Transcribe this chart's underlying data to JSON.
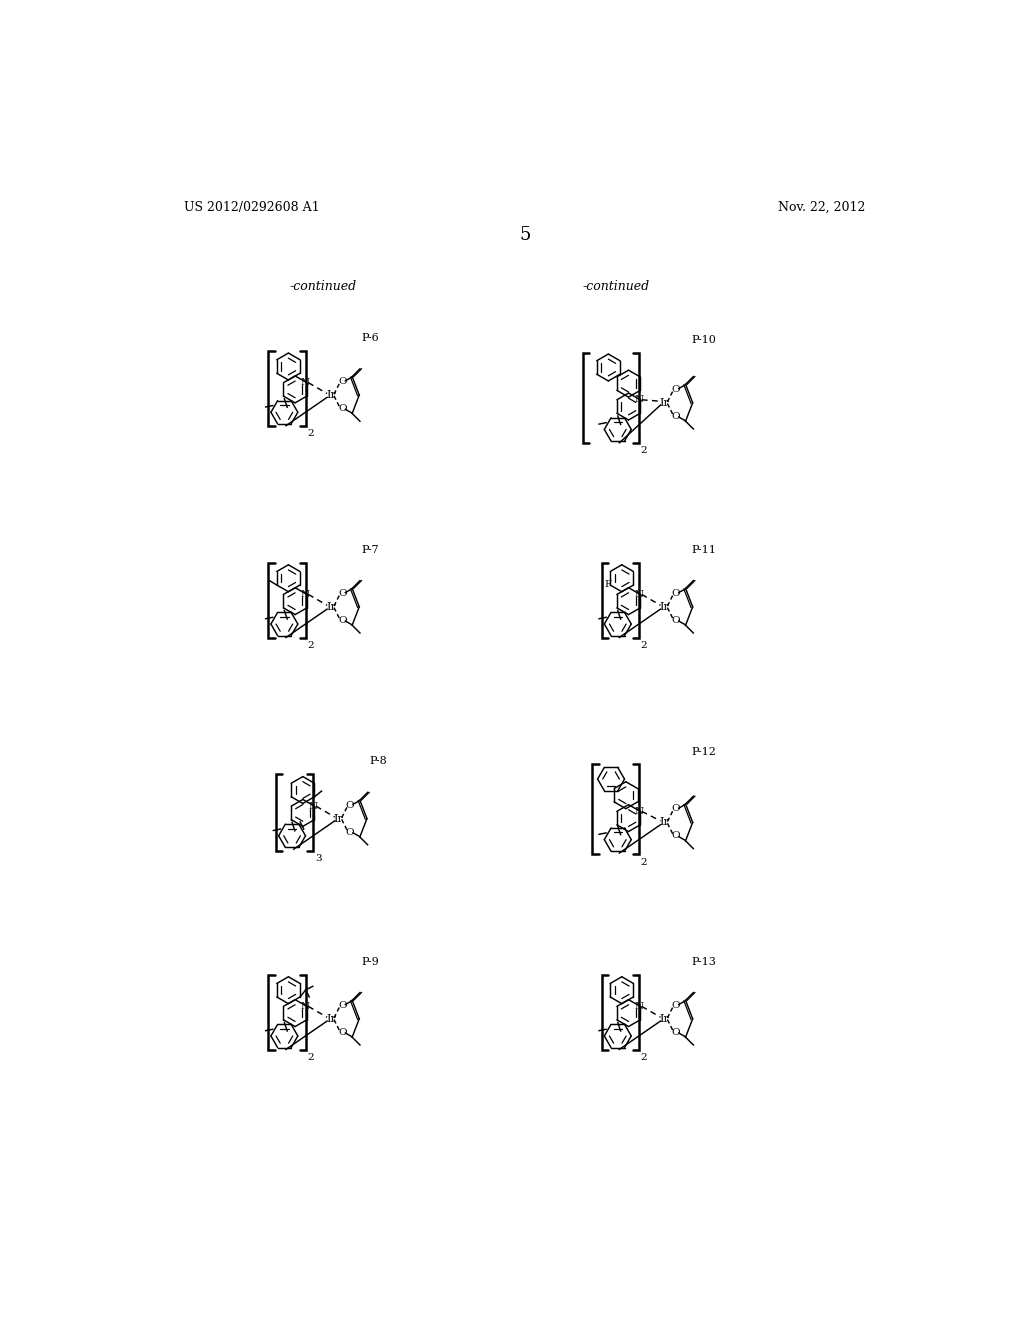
{
  "background_color": "#ffffff",
  "header_left": "US 2012/0292608 A1",
  "header_right": "Nov. 22, 2012",
  "page_number": "5",
  "continued_left": "-continued",
  "continued_right": "-continued",
  "labels_left": [
    "P-6",
    "P-7",
    "P-8",
    "P-9"
  ],
  "labels_right": [
    "P-10",
    "P-11",
    "P-12",
    "P-13"
  ],
  "subscripts_left": [
    "2",
    "2",
    "3",
    "2"
  ],
  "subscripts_right": [
    "2",
    "2",
    "2",
    "2"
  ]
}
